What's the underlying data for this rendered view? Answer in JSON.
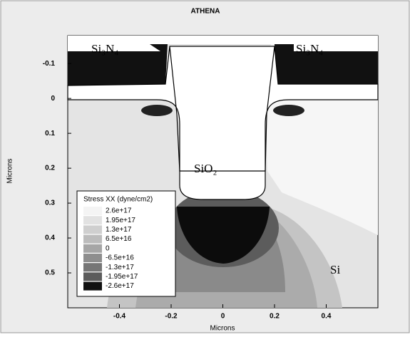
{
  "chart_data": {
    "type": "contour",
    "title": "ATHENA",
    "x_label": "Microns",
    "y_label": "Microns",
    "xlim": [
      -0.6,
      0.6
    ],
    "ylim": [
      -0.18,
      0.6
    ],
    "xticks": [
      -0.4,
      -0.2,
      0,
      0.2,
      0.4
    ],
    "yticks": [
      -0.1,
      0,
      0.1,
      0.2,
      0.3,
      0.4,
      0.5
    ],
    "legend_title": "Stress XX (dyne/cm2)",
    "levels": [
      {
        "value": 2.6e+17,
        "label": "2.6e+17",
        "color": "#f4f4f4"
      },
      {
        "value": 1.95e+17,
        "label": "1.95e+17",
        "color": "#e2e2e2"
      },
      {
        "value": 1.3e+17,
        "label": "1.3e+17",
        "color": "#cfcfcf"
      },
      {
        "value": 6.5e+16,
        "label": "6.5e+16",
        "color": "#bcbcbc"
      },
      {
        "value": 0,
        "label": "0",
        "color": "#a6a6a6"
      },
      {
        "value": -6.5e+16,
        "label": "-6.5e+16",
        "color": "#8e8e8e"
      },
      {
        "value": -1.3e+17,
        "label": "-1.3e+17",
        "color": "#767676"
      },
      {
        "value": -1.95e+17,
        "label": "-1.95e+17",
        "color": "#5c5c5c"
      },
      {
        "value": -2.6e+17,
        "label": "-2.6e+17",
        "color": "#111111"
      }
    ],
    "region_labels": [
      "Si₃N₄",
      "Si₃N₄",
      "SiO₂",
      "Si"
    ]
  }
}
